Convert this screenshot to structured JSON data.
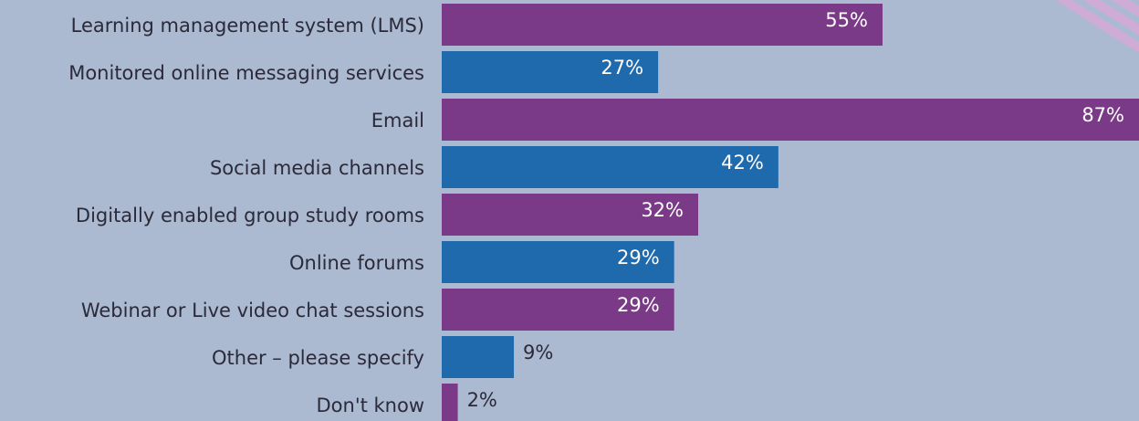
{
  "chart_data": {
    "type": "bar",
    "orientation": "horizontal",
    "categories": [
      "Learning management system (LMS)",
      "Monitored online messaging services",
      "Email",
      "Social media channels",
      "Digitally enabled group study rooms",
      "Online forums",
      "Webinar or Live video chat sessions",
      "Other – please specify",
      "Don't know"
    ],
    "values": [
      55,
      27,
      87,
      42,
      32,
      29,
      29,
      9,
      2
    ],
    "value_labels": [
      "55%",
      "27%",
      "87%",
      "42%",
      "32%",
      "29%",
      "29%",
      "9%",
      "2%"
    ],
    "colors": [
      "#7b3a87",
      "#1f6aad",
      "#7b3a87",
      "#1f6aad",
      "#7b3a87",
      "#1f6aad",
      "#7b3a87",
      "#1f6aad",
      "#7b3a87"
    ]
  }
}
